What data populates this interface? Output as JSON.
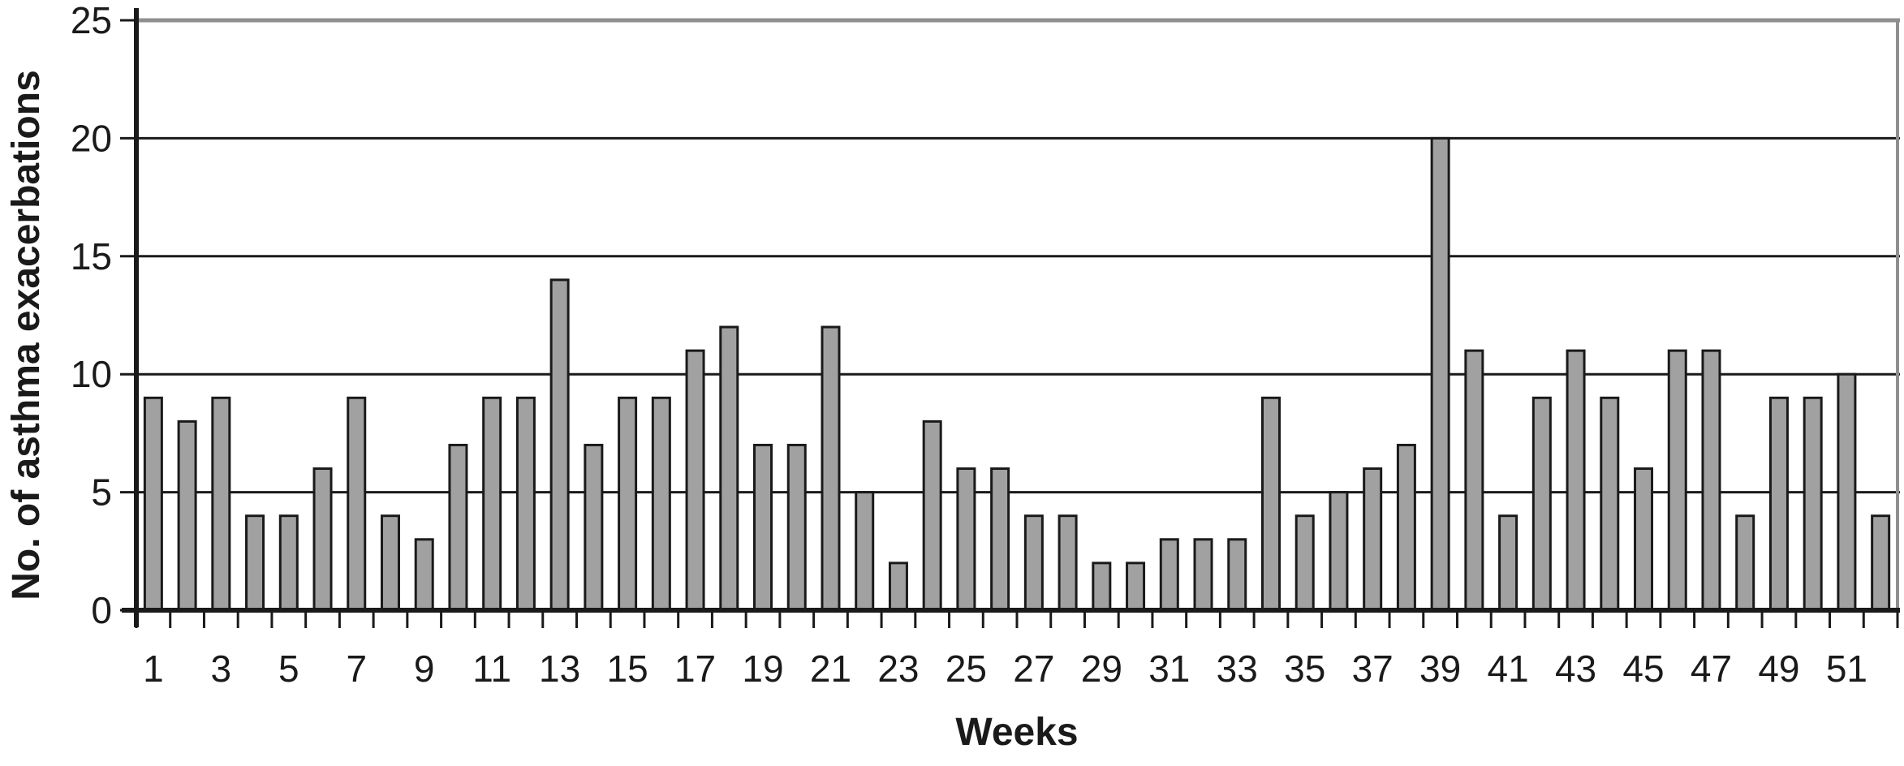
{
  "chart_data": {
    "type": "bar",
    "title": "",
    "xlabel": "Weeks",
    "ylabel": "No. of asthma exacerbations",
    "categories": [
      1,
      2,
      3,
      4,
      5,
      6,
      7,
      8,
      9,
      10,
      11,
      12,
      13,
      14,
      15,
      16,
      17,
      18,
      19,
      20,
      21,
      22,
      23,
      24,
      25,
      26,
      27,
      28,
      29,
      30,
      31,
      32,
      33,
      34,
      35,
      36,
      37,
      38,
      39,
      40,
      41,
      42,
      43,
      44,
      45,
      46,
      47,
      48,
      49,
      50,
      51,
      52
    ],
    "values": [
      9,
      8,
      9,
      4,
      4,
      6,
      9,
      4,
      3,
      7,
      9,
      9,
      14,
      7,
      9,
      9,
      11,
      12,
      7,
      7,
      12,
      5,
      2,
      8,
      6,
      6,
      4,
      4,
      2,
      2,
      3,
      3,
      3,
      9,
      4,
      5,
      6,
      7,
      20,
      11,
      4,
      9,
      11,
      9,
      6,
      11,
      11,
      4,
      9,
      9,
      10,
      4
    ],
    "x_tick_labels": [
      "1",
      "3",
      "5",
      "7",
      "9",
      "11",
      "13",
      "15",
      "17",
      "19",
      "21",
      "23",
      "25",
      "27",
      "29",
      "31",
      "33",
      "35",
      "37",
      "39",
      "41",
      "43",
      "45",
      "47",
      "49",
      "51"
    ],
    "y_ticks": [
      0,
      5,
      10,
      15,
      20,
      25
    ],
    "ylim": [
      0,
      25
    ],
    "grid": "horizontal-on",
    "legend": "none",
    "colors": {
      "bar_fill": "#a1a1a1",
      "bar_border": "#1a1a1a",
      "axis": "#1a1a1a",
      "gridline": "#1a1a1a",
      "frame_gray": "#8f8f8f",
      "background": "#ffffff"
    }
  }
}
